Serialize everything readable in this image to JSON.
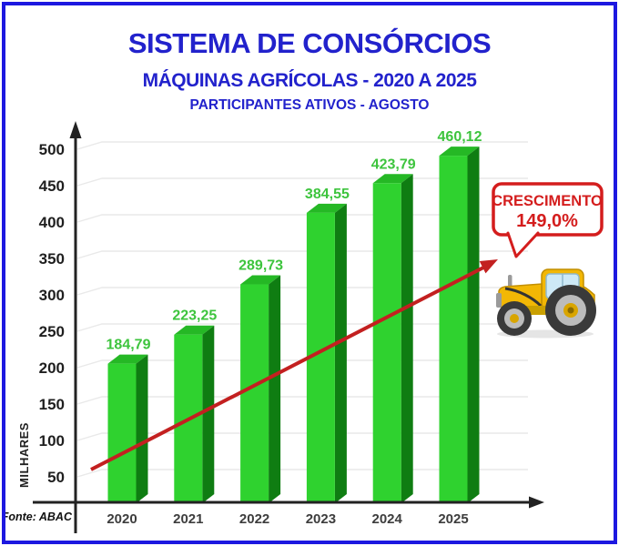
{
  "header": {
    "title": "SISTEMA DE CONSÓRCIOS",
    "subtitle": "MÁQUINAS AGRÍCOLAS - 2020 A 2025",
    "caption": "PARTICIPANTES ATIVOS - AGOSTO"
  },
  "chart_data": {
    "type": "bar",
    "title": "SISTEMA DE CONSÓRCIOS",
    "subtitle": "MÁQUINAS AGRÍCOLAS - 2020 A 2025 — PARTICIPANTES ATIVOS - AGOSTO",
    "categories": [
      "2020",
      "2021",
      "2022",
      "2023",
      "2024",
      "2025"
    ],
    "values": [
      184.79,
      223.25,
      289.73,
      384.55,
      423.79,
      460.12
    ],
    "value_labels": [
      "184,79",
      "223,25",
      "289,73",
      "384,55",
      "423,79",
      "460,12"
    ],
    "xlabel": "",
    "ylabel": "MILHARES",
    "yticks": [
      500,
      450,
      400,
      350,
      300,
      250,
      200,
      150,
      100,
      50
    ],
    "ylim": [
      0,
      500
    ],
    "grid": true,
    "legend": false,
    "bar_style": "3d",
    "bar_front_color": "#2fd22f",
    "bar_side_color": "#0f7d12",
    "bar_top_color": "#25b825",
    "value_label_color": "#3dc43d",
    "trend_line_color": "#c32020"
  },
  "annotation": {
    "line1": "CRESCIMENTO",
    "line2": "149,0%",
    "color": "#d41d1d"
  },
  "source": "Fonte: ABAC",
  "colors": {
    "frame_blue": "#1d18e0",
    "title_blue": "#2222cc",
    "axis_black": "#222222",
    "gridline_gray": "#e9e9e9"
  }
}
